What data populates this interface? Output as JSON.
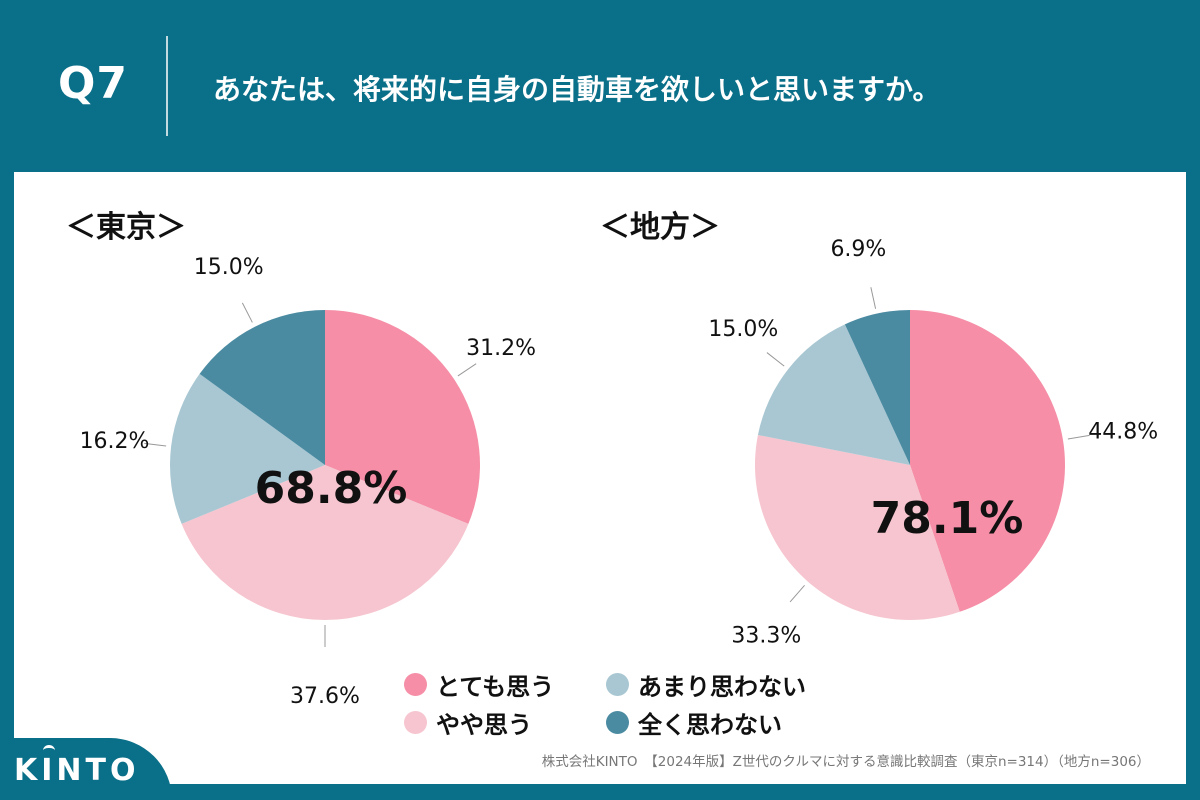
{
  "header": {
    "question_number": "Q7",
    "question": "あなたは、将来的に自身の自動車を欲しいと思いますか。"
  },
  "colors": {
    "background": "#0a6f88",
    "strongly_agree": "#f58ea6",
    "somewhat_agree": "#f6c5cf",
    "somewhat_disagree": "#a8c7d2",
    "strongly_disagree": "#4b8ba2"
  },
  "chart_data": [
    {
      "type": "pie",
      "title": "＜東京＞",
      "categories": [
        "とても思う",
        "やや思う",
        "あまり思わない",
        "全く思わない"
      ],
      "values": [
        31.2,
        37.6,
        16.2,
        15.0
      ],
      "labels": [
        "31.2%",
        "37.6%",
        "16.2%",
        "15.0%"
      ],
      "center_label": "68.8%"
    },
    {
      "type": "pie",
      "title": "＜地方＞",
      "categories": [
        "とても思う",
        "やや思う",
        "あまり思わない",
        "全く思わない"
      ],
      "values": [
        44.8,
        33.3,
        15.0,
        6.9
      ],
      "labels": [
        "44.8%",
        "33.3%",
        "15.0%",
        "6.9%"
      ],
      "center_label": "78.1%"
    }
  ],
  "legend": [
    {
      "label": "とても思う",
      "color": "#f58ea6"
    },
    {
      "label": "やや思う",
      "color": "#f6c5cf"
    },
    {
      "label": "あまり思わない",
      "color": "#a8c7d2"
    },
    {
      "label": "全く思わない",
      "color": "#4b8ba2"
    }
  ],
  "footer": {
    "note": "株式会社KINTO　【2024年版】Z世代のクルマに対する意識比較調査（東京n=314）（地方n=306）",
    "logo": "KINTO"
  }
}
